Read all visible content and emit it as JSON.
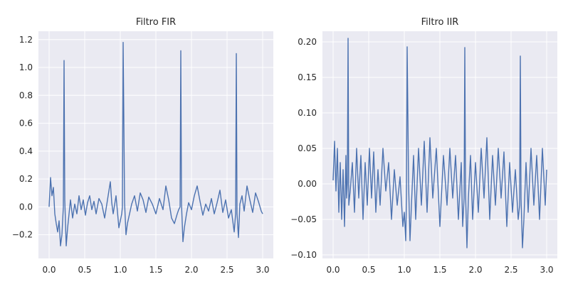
{
  "chart_data": [
    {
      "type": "line",
      "title": "Filtro FIR",
      "xlabel": "",
      "ylabel": "",
      "xlim": [
        -0.15,
        3.15
      ],
      "ylim": [
        -0.37,
        1.26
      ],
      "xticks": [
        0.0,
        0.5,
        1.0,
        1.5,
        2.0,
        2.5,
        3.0
      ],
      "xtick_labels": [
        "0.0",
        "0.5",
        "1.0",
        "1.5",
        "2.0",
        "2.5",
        "3.0"
      ],
      "yticks": [
        -0.2,
        0.0,
        0.2,
        0.4,
        0.6,
        0.8,
        1.0,
        1.2
      ],
      "ytick_labels": [
        "−0.2",
        "0.0",
        "0.2",
        "0.4",
        "0.6",
        "0.8",
        "1.0",
        "1.2"
      ],
      "grid": true,
      "color": "#4c72b0",
      "series": [
        {
          "x": [
            0.0,
            0.02,
            0.04,
            0.06,
            0.08,
            0.1,
            0.12,
            0.14,
            0.16,
            0.18,
            0.2,
            0.21,
            0.22,
            0.24,
            0.26,
            0.28,
            0.3,
            0.33,
            0.36,
            0.39,
            0.42,
            0.45,
            0.48,
            0.51,
            0.54,
            0.57,
            0.6,
            0.63,
            0.66,
            0.7,
            0.74,
            0.78,
            0.82,
            0.86,
            0.88,
            0.9,
            0.94,
            0.98,
            1.0,
            1.02,
            1.03,
            1.04,
            1.06,
            1.08,
            1.1,
            1.13,
            1.16,
            1.2,
            1.24,
            1.28,
            1.32,
            1.36,
            1.4,
            1.45,
            1.5,
            1.55,
            1.6,
            1.64,
            1.68,
            1.72,
            1.76,
            1.8,
            1.82,
            1.84,
            1.85,
            1.86,
            1.88,
            1.9,
            1.93,
            1.96,
            2.0,
            2.04,
            2.08,
            2.12,
            2.16,
            2.2,
            2.24,
            2.28,
            2.32,
            2.36,
            2.4,
            2.44,
            2.48,
            2.52,
            2.56,
            2.6,
            2.62,
            2.63,
            2.64,
            2.66,
            2.68,
            2.71,
            2.74,
            2.78,
            2.82,
            2.86,
            2.9,
            2.94,
            2.98,
            3.0
          ],
          "y": [
            0.0,
            0.21,
            0.08,
            0.14,
            -0.05,
            -0.12,
            -0.18,
            -0.1,
            -0.28,
            -0.2,
            0.0,
            1.05,
            0.05,
            -0.28,
            -0.15,
            -0.05,
            0.05,
            -0.08,
            0.02,
            -0.05,
            0.08,
            -0.02,
            0.05,
            -0.06,
            0.03,
            0.08,
            -0.02,
            0.04,
            -0.05,
            0.06,
            0.02,
            -0.08,
            0.05,
            0.18,
            0.03,
            -0.05,
            0.08,
            -0.15,
            -0.1,
            -0.05,
            0.0,
            1.18,
            0.03,
            -0.2,
            -0.12,
            -0.05,
            0.02,
            0.08,
            -0.03,
            0.1,
            0.05,
            -0.04,
            0.07,
            0.02,
            -0.05,
            0.06,
            -0.02,
            0.15,
            0.05,
            -0.08,
            -0.12,
            -0.05,
            -0.02,
            0.0,
            1.12,
            0.02,
            -0.25,
            -0.15,
            -0.05,
            0.03,
            -0.02,
            0.08,
            0.15,
            0.04,
            -0.06,
            0.02,
            -0.03,
            0.06,
            -0.05,
            0.03,
            0.12,
            -0.04,
            0.05,
            -0.08,
            -0.02,
            -0.18,
            -0.05,
            1.1,
            -0.05,
            -0.22,
            0.02,
            0.08,
            -0.03,
            0.15,
            0.05,
            -0.04,
            0.1,
            0.04,
            -0.03,
            -0.05
          ]
        }
      ]
    },
    {
      "type": "line",
      "title": "Filtro IIR",
      "xlabel": "",
      "ylabel": "",
      "xlim": [
        -0.15,
        3.15
      ],
      "ylim": [
        -0.105,
        0.215
      ],
      "xticks": [
        0.0,
        0.5,
        1.0,
        1.5,
        2.0,
        2.5,
        3.0
      ],
      "xtick_labels": [
        "0.0",
        "0.5",
        "1.0",
        "1.5",
        "2.0",
        "2.5",
        "3.0"
      ],
      "yticks": [
        -0.1,
        -0.05,
        0.0,
        0.05,
        0.1,
        0.15,
        0.2
      ],
      "ytick_labels": [
        "−0.10",
        "−0.05",
        "0.00",
        "0.05",
        "0.10",
        "0.15",
        "0.20"
      ],
      "grid": true,
      "color": "#4c72b0",
      "series": [
        {
          "x": [
            0.0,
            0.02,
            0.04,
            0.06,
            0.08,
            0.1,
            0.12,
            0.14,
            0.16,
            0.18,
            0.19,
            0.2,
            0.21,
            0.22,
            0.24,
            0.27,
            0.3,
            0.33,
            0.36,
            0.39,
            0.42,
            0.45,
            0.48,
            0.51,
            0.54,
            0.57,
            0.6,
            0.63,
            0.66,
            0.7,
            0.74,
            0.78,
            0.82,
            0.86,
            0.9,
            0.94,
            0.98,
            1.0,
            1.02,
            1.03,
            1.04,
            1.06,
            1.08,
            1.1,
            1.13,
            1.16,
            1.2,
            1.24,
            1.28,
            1.32,
            1.36,
            1.4,
            1.45,
            1.5,
            1.55,
            1.6,
            1.64,
            1.68,
            1.72,
            1.76,
            1.8,
            1.82,
            1.84,
            1.85,
            1.86,
            1.88,
            1.9,
            1.93,
            1.96,
            2.0,
            2.04,
            2.08,
            2.12,
            2.16,
            2.2,
            2.24,
            2.28,
            2.32,
            2.36,
            2.4,
            2.44,
            2.48,
            2.52,
            2.56,
            2.6,
            2.62,
            2.63,
            2.64,
            2.66,
            2.68,
            2.71,
            2.74,
            2.78,
            2.82,
            2.86,
            2.9,
            2.94,
            2.98,
            3.0
          ],
          "y": [
            0.005,
            0.06,
            -0.01,
            0.05,
            -0.04,
            0.03,
            -0.05,
            0.02,
            -0.06,
            0.04,
            -0.02,
            0.0,
            0.205,
            -0.03,
            -0.01,
            0.03,
            -0.04,
            0.05,
            -0.02,
            0.04,
            -0.05,
            0.03,
            -0.03,
            0.05,
            -0.02,
            0.045,
            -0.04,
            0.02,
            -0.03,
            0.05,
            -0.01,
            0.03,
            -0.05,
            0.02,
            -0.03,
            0.01,
            -0.06,
            -0.04,
            -0.08,
            -0.02,
            0.193,
            0.0,
            -0.08,
            -0.03,
            0.04,
            -0.05,
            0.05,
            -0.03,
            0.06,
            -0.04,
            0.065,
            -0.02,
            0.05,
            -0.06,
            0.04,
            -0.03,
            0.05,
            -0.02,
            0.04,
            -0.05,
            0.03,
            -0.06,
            -0.02,
            0.192,
            -0.01,
            -0.09,
            -0.02,
            0.04,
            -0.05,
            0.03,
            -0.04,
            0.05,
            -0.02,
            0.065,
            -0.05,
            0.04,
            -0.03,
            0.05,
            -0.02,
            0.045,
            -0.06,
            0.03,
            -0.04,
            0.02,
            -0.05,
            -0.03,
            0.18,
            -0.02,
            -0.09,
            -0.05,
            0.03,
            -0.04,
            0.05,
            -0.03,
            0.04,
            -0.05,
            0.05,
            -0.03,
            0.02
          ]
        }
      ]
    }
  ]
}
